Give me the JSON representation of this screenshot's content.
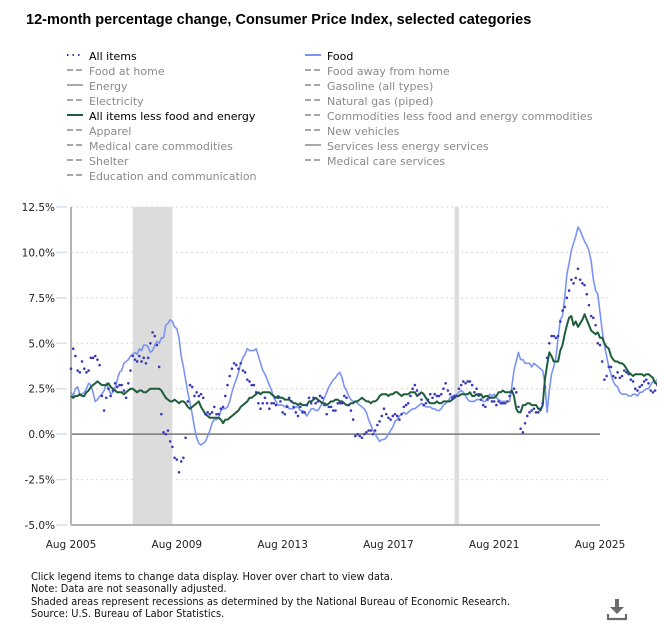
{
  "title": "12-month percentage change, Consumer Price Index, selected categories",
  "legend": [
    {
      "label": "All items",
      "style": "dotted",
      "color": "#3a3ab8",
      "active": true,
      "column": 0
    },
    {
      "label": "Food",
      "style": "solid",
      "color": "#7b93f2",
      "active": true,
      "column": 1
    },
    {
      "label": "Food at home",
      "style": "dashed",
      "color": "#8a8a8a",
      "active": false,
      "column": 0
    },
    {
      "label": "Food away from home",
      "style": "dashed",
      "color": "#8a8a8a",
      "active": false,
      "column": 1
    },
    {
      "label": "Energy",
      "style": "solid",
      "color": "#8a8a8a",
      "active": false,
      "column": 0
    },
    {
      "label": "Gasoline (all types)",
      "style": "dashed",
      "color": "#8a8a8a",
      "active": false,
      "column": 1
    },
    {
      "label": "Electricity",
      "style": "dashed",
      "color": "#8a8a8a",
      "active": false,
      "column": 0
    },
    {
      "label": "Natural gas (piped)",
      "style": "dashed",
      "color": "#8a8a8a",
      "active": false,
      "column": 1
    },
    {
      "label": "All items less food and energy",
      "style": "solid",
      "color": "#1d5e3a",
      "active": true,
      "column": 0
    },
    {
      "label": "Commodities less food and energy commodities",
      "style": "dashed",
      "color": "#8a8a8a",
      "active": false,
      "column": 1
    },
    {
      "label": "Apparel",
      "style": "dashed",
      "color": "#8a8a8a",
      "active": false,
      "column": 0
    },
    {
      "label": "New vehicles",
      "style": "dashed",
      "color": "#8a8a8a",
      "active": false,
      "column": 1
    },
    {
      "label": "Medical care commodities",
      "style": "dashed",
      "color": "#8a8a8a",
      "active": false,
      "column": 0
    },
    {
      "label": "Services less energy services",
      "style": "solid",
      "color": "#8a8a8a",
      "active": false,
      "column": 1
    },
    {
      "label": "Shelter",
      "style": "dashed",
      "color": "#8a8a8a",
      "active": false,
      "column": 0
    },
    {
      "label": "Medical care services",
      "style": "dashed",
      "color": "#8a8a8a",
      "active": false,
      "column": 1
    },
    {
      "label": "Education and communication",
      "style": "dashed",
      "color": "#8a8a8a",
      "active": false,
      "column": 0
    }
  ],
  "notes": [
    "Click legend items to change data display. Hover over chart to view data.",
    "Note: Data are not seasonally adjusted.",
    "Shaded areas represent recessions as determined by the National Bureau of Economic Research.",
    "Source: U.S. Bureau of Labor Statistics."
  ],
  "download_icon": "download-icon",
  "chart_data": {
    "type": "line",
    "title": "12-month percentage change, Consumer Price Index, selected categories",
    "xlabel": "",
    "ylabel": "",
    "x_start": "Aug 2005",
    "x_end": "Aug 2025",
    "x_unit": "month",
    "xlim": [
      "Aug 2005",
      "Aug 2025"
    ],
    "ylim": [
      -5.0,
      12.5
    ],
    "x_ticks": [
      "Aug 2005",
      "Aug 2009",
      "Aug 2013",
      "Aug 2017",
      "Aug 2021",
      "Aug 2025"
    ],
    "y_ticks": [
      "-5.0%",
      "-2.5%",
      "0.0%",
      "2.5%",
      "5.0%",
      "7.5%",
      "10.0%",
      "12.5%"
    ],
    "y_tick_values": [
      -5.0,
      -2.5,
      0.0,
      2.5,
      5.0,
      7.5,
      10.0,
      12.5
    ],
    "grid": true,
    "legend_position": "top",
    "recessions": [
      {
        "start": "Dec 2007",
        "end": "Jun 2009"
      },
      {
        "start": "Feb 2020",
        "end": "Apr 2020"
      }
    ],
    "series": [
      {
        "name": "All items",
        "style": "dotted",
        "color": "#3a3ab8",
        "values": [
          3.6,
          4.7,
          4.3,
          3.5,
          3.4,
          4.0,
          3.6,
          3.4,
          3.5,
          4.2,
          4.2,
          4.3,
          4.1,
          3.8,
          2.1,
          1.3,
          2.0,
          2.5,
          2.1,
          2.4,
          2.8,
          2.6,
          2.7,
          2.7,
          2.4,
          2.0,
          2.8,
          3.5,
          4.3,
          4.1,
          4.0,
          4.3,
          4.0,
          4.2,
          3.9,
          4.2,
          5.0,
          5.6,
          5.4,
          4.9,
          3.7,
          1.1,
          0.1,
          -0.0,
          0.2,
          -0.4,
          -0.7,
          -1.3,
          -1.4,
          -2.1,
          -1.5,
          -1.3,
          -0.2,
          1.8,
          2.7,
          2.6,
          2.1,
          2.3,
          2.1,
          2.2,
          2.0,
          1.1,
          1.2,
          1.1,
          1.2,
          1.5,
          1.1,
          1.1,
          1.4,
          1.5,
          2.1,
          2.7,
          3.2,
          3.6,
          3.9,
          3.8,
          3.6,
          3.9,
          3.5,
          3.4,
          3.0,
          2.9,
          2.7,
          2.7,
          2.3,
          1.7,
          1.4,
          1.7,
          2.0,
          1.7,
          1.4,
          1.7,
          1.7,
          1.6,
          2.0,
          1.8,
          1.2,
          1.1,
          1.5,
          2.0,
          1.8,
          1.5,
          1.2,
          1.0,
          1.5,
          1.2,
          1.2,
          1.6,
          2.0,
          1.7,
          2.0,
          1.7,
          1.8,
          2.1,
          2.0,
          1.6,
          1.1,
          1.5,
          1.5,
          1.3,
          1.3,
          1.7,
          1.7,
          1.7,
          2.1,
          2.0,
          1.6,
          1.3,
          0.8,
          -0.1,
          0.0,
          -0.1,
          -0.2,
          0.0,
          0.1,
          0.2,
          0.2,
          0.0,
          0.2,
          0.5,
          0.7,
          1.0,
          1.4,
          1.1,
          0.9,
          0.8,
          1.0,
          1.1,
          1.0,
          0.8,
          1.1,
          1.5,
          1.6,
          1.7,
          2.1,
          2.5,
          2.7,
          2.4,
          2.2,
          1.9,
          1.6,
          1.7,
          1.9,
          2.2,
          2.0,
          2.2,
          2.1,
          2.1,
          2.2,
          2.5,
          2.8,
          2.4,
          2.2,
          2.0,
          2.1,
          2.1,
          2.5,
          2.7,
          2.9,
          2.8,
          2.9,
          2.9,
          2.7,
          2.3,
          2.5,
          2.2,
          1.9,
          1.6,
          1.5,
          1.9,
          2.0,
          1.8,
          1.8,
          1.6,
          1.8,
          1.7,
          1.7,
          1.7,
          1.8,
          2.1,
          2.3,
          2.5,
          2.3,
          1.5,
          0.3,
          0.1,
          0.6,
          1.0,
          1.2,
          1.3,
          1.4,
          1.2,
          1.2,
          1.4,
          1.7,
          2.6,
          4.2,
          5.0,
          5.4,
          5.4,
          5.3,
          5.4,
          6.2,
          6.8,
          7.0,
          7.5,
          7.9,
          8.5,
          8.3,
          8.6,
          9.1,
          8.5,
          8.3,
          8.2,
          7.7,
          7.1,
          6.5,
          6.4,
          6.0,
          5.0,
          4.9,
          4.0,
          3.0,
          3.2,
          3.7,
          3.7,
          3.2,
          3.1,
          3.4,
          3.1,
          3.2,
          3.5,
          3.4,
          3.3,
          3.0,
          2.9,
          2.5,
          2.4,
          2.6,
          2.7,
          2.9,
          3.0,
          2.8,
          2.4,
          2.3,
          2.4,
          2.7,
          2.7,
          2.9
        ]
      },
      {
        "name": "Food",
        "style": "solid",
        "color": "#7b93f2",
        "values": [
          2.3,
          2.1,
          2.5,
          2.6,
          2.2,
          2.2,
          2.3,
          2.5,
          2.8,
          2.7,
          2.3,
          1.8,
          1.9,
          2.1,
          2.2,
          2.4,
          2.8,
          2.5,
          2.2,
          2.3,
          2.5,
          3.0,
          3.4,
          3.5,
          3.9,
          4.0,
          4.1,
          4.3,
          4.4,
          4.5,
          4.4,
          4.7,
          4.6,
          4.9,
          4.9,
          4.8,
          4.5,
          4.6,
          4.9,
          5.1,
          5.0,
          5.3,
          5.3,
          6.0,
          6.1,
          6.3,
          6.2,
          5.9,
          5.8,
          5.3,
          4.3,
          3.7,
          3.0,
          2.3,
          1.7,
          1.1,
          0.4,
          -0.2,
          -0.5,
          -0.6,
          -0.5,
          -0.4,
          -0.1,
          0.2,
          0.6,
          0.8,
          0.8,
          0.9,
          1.3,
          1.4,
          1.4,
          1.5,
          1.8,
          2.3,
          2.7,
          3.0,
          3.4,
          3.9,
          4.2,
          4.4,
          4.7,
          4.6,
          4.6,
          4.6,
          4.7,
          4.3,
          3.9,
          3.5,
          3.3,
          3.0,
          2.7,
          2.4,
          2.0,
          1.8,
          1.6,
          1.6,
          1.6,
          1.5,
          1.6,
          1.4,
          1.4,
          1.4,
          1.5,
          1.5,
          1.3,
          1.3,
          1.2,
          1.0,
          1.2,
          1.4,
          1.4,
          1.3,
          1.3,
          1.5,
          1.7,
          2.0,
          2.3,
          2.6,
          2.8,
          3.0,
          3.1,
          3.3,
          3.4,
          3.1,
          2.6,
          2.4,
          2.1,
          1.9,
          1.8,
          1.8,
          1.7,
          1.6,
          1.5,
          1.4,
          1.2,
          0.8,
          0.5,
          0.2,
          0.0,
          -0.2,
          -0.4,
          -0.3,
          -0.3,
          -0.2,
          0.0,
          0.2,
          0.4,
          0.7,
          0.8,
          1.0,
          1.1,
          1.2,
          1.1,
          1.2,
          1.3,
          1.4,
          1.4,
          1.5,
          1.6,
          1.7,
          1.6,
          1.5,
          1.5,
          1.5,
          1.4,
          1.4,
          1.3,
          1.3,
          1.4,
          1.6,
          1.7,
          1.8,
          2.0,
          2.1,
          2.1,
          2.2,
          2.3,
          2.4,
          2.3,
          2.1,
          1.9,
          1.8,
          1.8,
          1.8,
          1.9,
          1.9,
          1.9,
          1.8,
          1.8,
          2.0,
          2.2,
          2.1,
          2.2,
          2.0,
          1.9,
          1.8,
          1.8,
          1.8,
          1.8,
          1.8,
          2.6,
          3.5,
          4.0,
          4.5,
          4.1,
          4.1,
          3.9,
          3.9,
          3.9,
          3.7,
          3.9,
          3.8,
          3.7,
          3.6,
          3.5,
          2.8,
          1.2,
          2.4,
          3.3,
          3.7,
          4.2,
          5.3,
          6.3,
          6.5,
          7.5,
          8.8,
          9.4,
          10.1,
          10.5,
          10.9,
          11.4,
          11.2,
          10.9,
          10.6,
          10.4,
          10.1,
          9.5,
          8.5,
          7.9,
          7.7,
          6.7,
          5.7,
          4.9,
          4.3,
          3.7,
          3.3,
          2.9,
          2.7,
          2.6,
          2.3,
          2.2,
          2.2,
          2.2,
          2.1,
          2.1,
          2.2,
          2.2,
          2.1,
          2.3,
          2.3,
          2.4,
          2.5,
          2.5,
          2.7,
          2.9,
          2.9,
          3.0,
          2.9,
          3.0,
          3.2
        ]
      },
      {
        "name": "All items less food and energy",
        "style": "solid",
        "color": "#1d5e3a",
        "values": [
          2.1,
          2.0,
          2.1,
          2.1,
          2.2,
          2.1,
          2.1,
          2.3,
          2.4,
          2.6,
          2.7,
          2.8,
          2.9,
          2.8,
          2.7,
          2.7,
          2.7,
          2.8,
          2.6,
          2.5,
          2.4,
          2.3,
          2.3,
          2.3,
          2.2,
          2.3,
          2.4,
          2.5,
          2.5,
          2.4,
          2.3,
          2.4,
          2.4,
          2.3,
          2.3,
          2.4,
          2.5,
          2.5,
          2.5,
          2.5,
          2.5,
          2.4,
          2.2,
          2.0,
          1.9,
          1.8,
          1.8,
          1.9,
          1.8,
          1.7,
          1.8,
          1.8,
          1.7,
          1.5,
          1.4,
          1.5,
          1.6,
          1.7,
          1.8,
          1.5,
          1.3,
          1.1,
          1.0,
          0.9,
          0.9,
          0.9,
          0.9,
          0.9,
          0.8,
          0.6,
          0.8,
          0.8,
          0.9,
          1.0,
          1.1,
          1.2,
          1.3,
          1.5,
          1.6,
          1.7,
          1.8,
          2.0,
          2.0,
          2.1,
          2.2,
          2.3,
          2.2,
          2.3,
          2.3,
          2.3,
          2.3,
          2.2,
          2.1,
          2.0,
          2.1,
          2.0,
          2.0,
          1.9,
          1.9,
          1.9,
          1.8,
          1.7,
          1.7,
          1.6,
          1.7,
          1.6,
          1.6,
          1.6,
          1.8,
          1.8,
          1.9,
          2.0,
          1.9,
          1.8,
          1.7,
          1.7,
          1.6,
          1.7,
          1.8,
          1.8,
          1.9,
          1.9,
          1.8,
          1.8,
          1.7,
          1.6,
          1.6,
          1.7,
          1.7,
          1.8,
          1.8,
          1.9,
          2.0,
          1.9,
          1.8,
          1.8,
          1.7,
          1.8,
          1.8,
          1.9,
          2.1,
          2.2,
          2.2,
          2.2,
          2.1,
          2.2,
          2.2,
          2.3,
          2.3,
          2.2,
          2.1,
          2.2,
          2.2,
          2.2,
          2.3,
          2.3,
          2.3,
          2.1,
          2.2,
          2.3,
          2.2,
          2.0,
          1.8,
          1.7,
          1.7,
          1.7,
          1.8,
          1.7,
          1.7,
          1.8,
          1.8,
          1.8,
          1.8,
          1.9,
          2.0,
          2.1,
          2.1,
          2.2,
          2.2,
          2.2,
          2.2,
          2.3,
          2.1,
          2.1,
          2.2,
          2.1,
          2.2,
          2.0,
          2.1,
          2.1,
          2.0,
          2.0,
          2.0,
          2.1,
          2.3,
          2.3,
          2.4,
          2.3,
          2.3,
          2.3,
          2.4,
          2.1,
          1.4,
          1.2,
          1.2,
          1.6,
          1.6,
          1.7,
          1.7,
          1.6,
          1.6,
          1.6,
          1.4,
          1.3,
          1.6,
          3.0,
          3.8,
          4.5,
          4.3,
          4.0,
          4.0,
          4.0,
          4.6,
          4.9,
          5.5,
          6.0,
          6.4,
          6.5,
          6.0,
          6.2,
          5.9,
          6.1,
          6.3,
          6.6,
          6.3,
          6.0,
          5.7,
          5.6,
          5.5,
          5.6,
          5.3,
          5.3,
          5.0,
          4.8,
          4.7,
          4.3,
          4.1,
          4.0,
          4.0,
          3.9,
          3.9,
          3.8,
          3.6,
          3.4,
          3.3,
          3.2,
          3.3,
          3.3,
          3.3,
          3.3,
          3.2,
          3.3,
          3.3,
          3.2,
          3.1,
          2.8,
          2.8,
          2.8,
          2.9,
          2.9,
          3.1,
          3.1
        ]
      }
    ]
  }
}
